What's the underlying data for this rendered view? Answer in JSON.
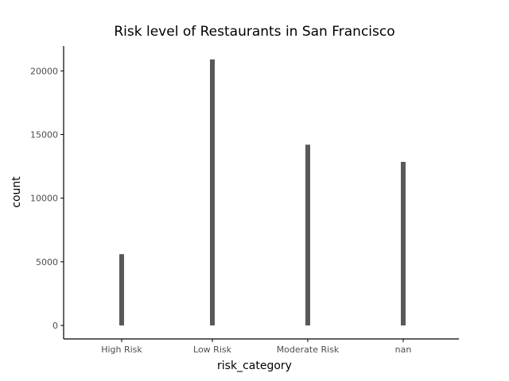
{
  "chart_data": {
    "type": "bar",
    "title": "Risk level of Restaurants in San Francisco",
    "xlabel": "risk_category",
    "ylabel": "count",
    "categories": [
      "High Risk",
      "Low Risk",
      "Moderate Risk",
      "nan"
    ],
    "values": [
      5600,
      20900,
      14200,
      12850
    ],
    "yticks": [
      0,
      5000,
      10000,
      15000,
      20000
    ],
    "ylim": [
      -1060,
      21950
    ],
    "grid": false,
    "bar_color": "#595959"
  }
}
